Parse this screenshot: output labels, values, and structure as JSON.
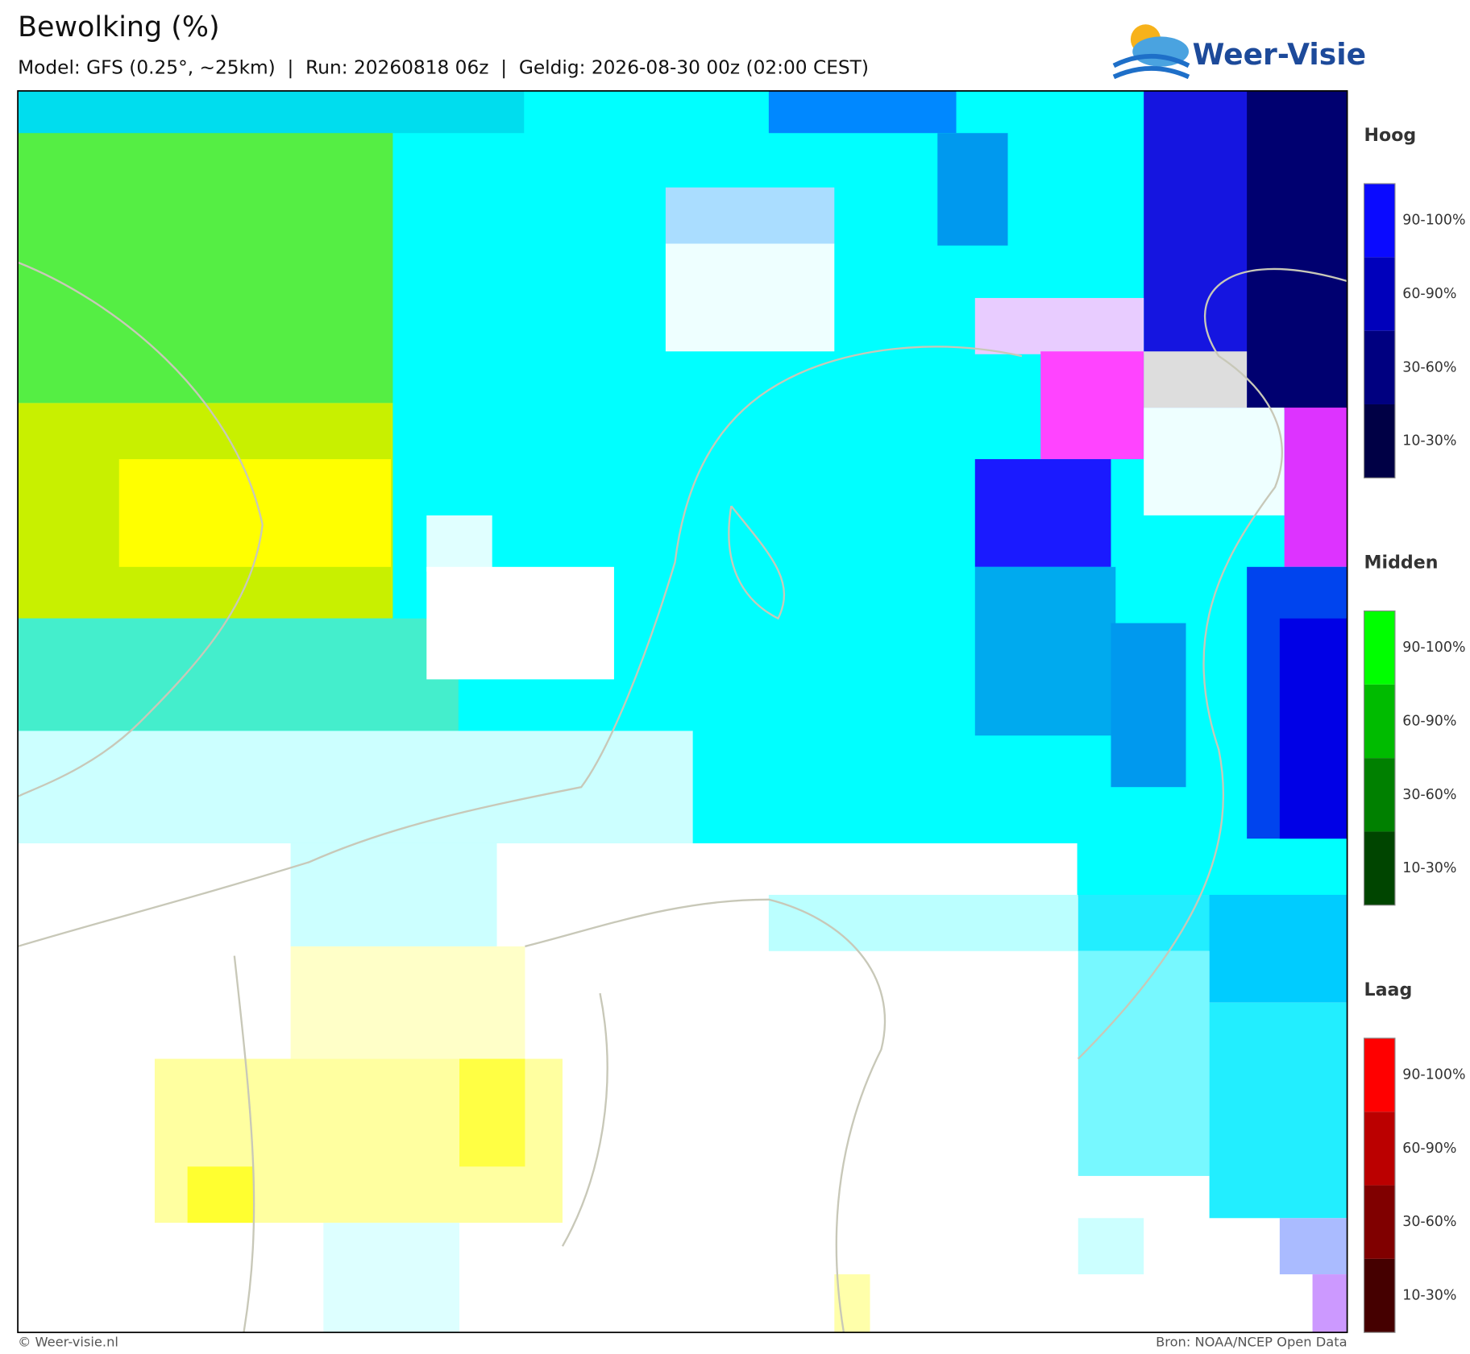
{
  "header": {
    "title": "Bewolking (%)",
    "subtitle": "Model: GFS (0.25°, ~25km)  |  Run: 20260818 06z  |  Geldig: 2026-08-30 00z (02:00 CEST)",
    "logo": "Weer-Visie"
  },
  "legend": [
    {
      "title": "Hoog",
      "labels": [
        "90-100%",
        "60-90%",
        "30-60%",
        "10-30%"
      ],
      "colors": [
        "#0a0aff",
        "#0000bb",
        "#000080",
        "#000045"
      ]
    },
    {
      "title": "Midden",
      "labels": [
        "90-100%",
        "60-90%",
        "30-60%",
        "10-30%"
      ],
      "colors": [
        "#00ff00",
        "#00bb00",
        "#008000",
        "#004500"
      ]
    },
    {
      "title": "Laag",
      "labels": [
        "90-100%",
        "60-90%",
        "30-60%",
        "10-30%"
      ],
      "colors": [
        "#ff0000",
        "#bb0000",
        "#800000",
        "#450000"
      ]
    }
  ],
  "footer": {
    "left": "© Weer-visie.nl",
    "right": "Bron: NOAA/NCEP Open Data"
  }
}
